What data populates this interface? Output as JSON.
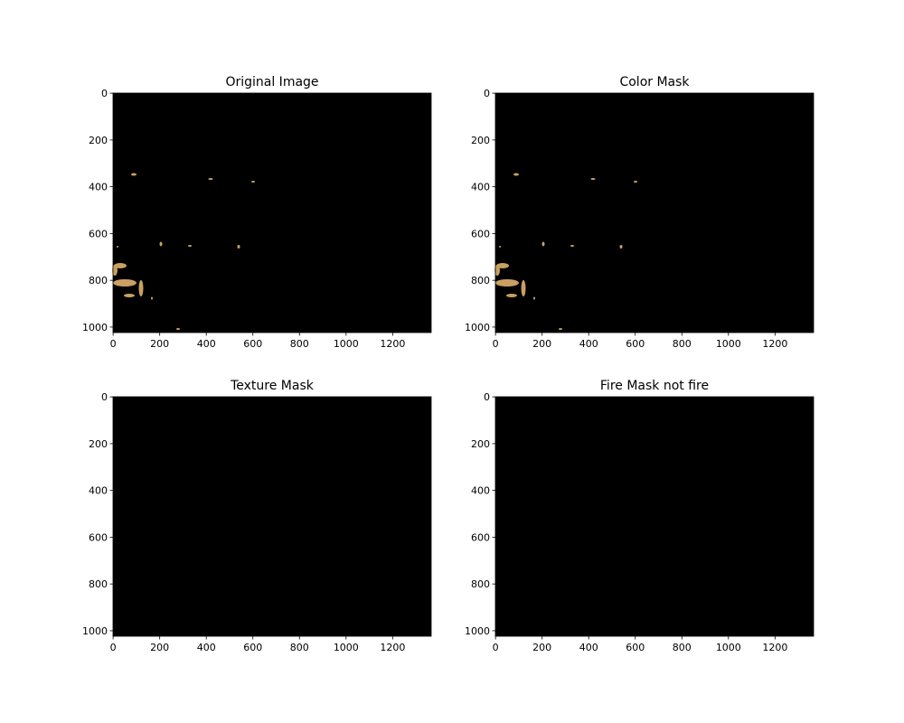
{
  "chart_data": [
    {
      "type": "image",
      "title": "Original Image",
      "xlim": [
        -0.5,
        1365.5
      ],
      "ylim": [
        1023.5,
        -0.5
      ],
      "xticks": [
        0,
        200,
        400,
        600,
        800,
        1000,
        1200
      ],
      "yticks": [
        0,
        200,
        400,
        600,
        800,
        1000
      ]
    },
    {
      "type": "image",
      "title": "Color Mask",
      "xlim": [
        -0.5,
        1365.5
      ],
      "ylim": [
        1023.5,
        -0.5
      ],
      "xticks": [
        0,
        200,
        400,
        600,
        800,
        1000,
        1200
      ],
      "yticks": [
        0,
        200,
        400,
        600,
        800,
        1000
      ]
    },
    {
      "type": "image",
      "title": "Texture Mask",
      "xlim": [
        -0.5,
        1365.5
      ],
      "ylim": [
        1023.5,
        -0.5
      ],
      "xticks": [
        0,
        200,
        400,
        600,
        800,
        1000,
        1200
      ],
      "yticks": [
        0,
        200,
        400,
        600,
        800,
        1000
      ]
    },
    {
      "type": "image",
      "title": "Fire Mask not fire",
      "xlim": [
        -0.5,
        1365.5
      ],
      "ylim": [
        1023.5,
        -0.5
      ],
      "xticks": [
        0,
        200,
        400,
        600,
        800,
        1000,
        1200
      ],
      "yticks": [
        0,
        200,
        400,
        600,
        800,
        1000
      ]
    }
  ]
}
